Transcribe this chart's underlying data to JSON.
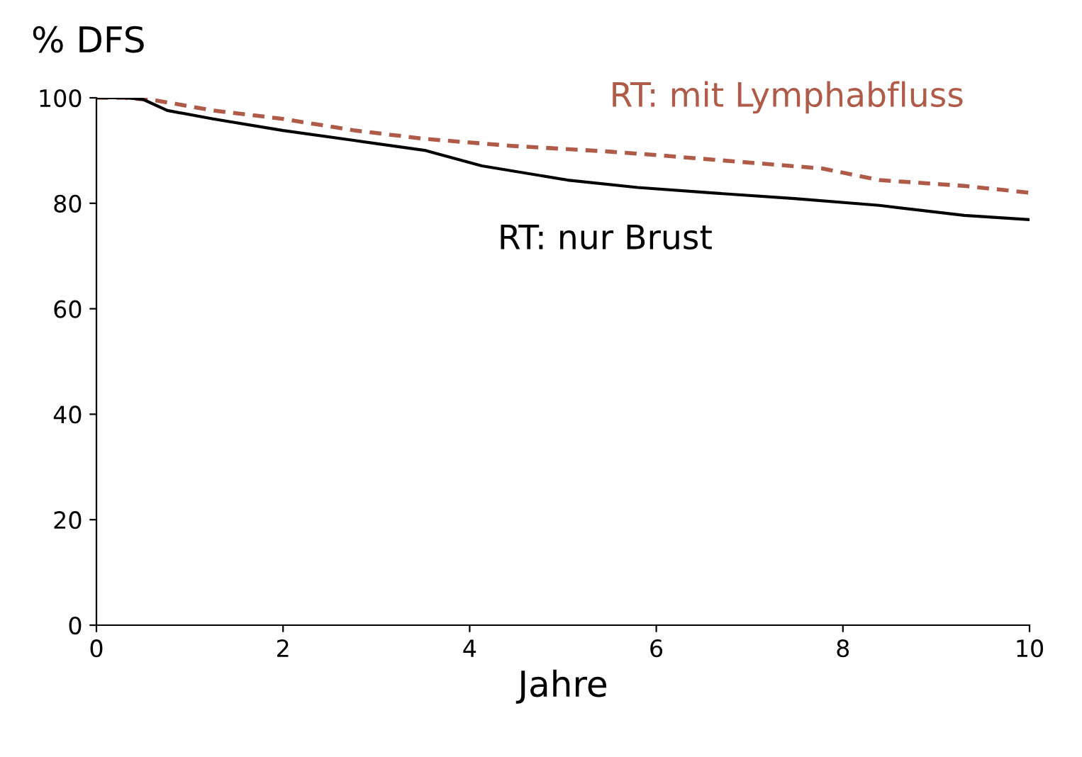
{
  "chart_data": {
    "type": "line",
    "xlabel": "Jahre",
    "ylabel": "% DFS",
    "xlim": [
      0,
      10
    ],
    "ylim": [
      0,
      100
    ],
    "xticks": [
      0,
      2,
      4,
      6,
      8,
      10
    ],
    "yticks": [
      0,
      20,
      40,
      60,
      80,
      100
    ],
    "grid": false,
    "legend": false,
    "marker": "none",
    "series": [
      {
        "name": "RT: mit Lymphabfluss",
        "color": "#b05a48",
        "line_style": "dashed",
        "x": [
          0,
          0.3,
          0.64,
          1.25,
          2,
          2.77,
          3.53,
          4.44,
          5.5,
          6.1,
          6.87,
          7.78,
          8.39,
          9.3,
          10
        ],
        "values": [
          100,
          100,
          99.5,
          97.6,
          96,
          93.8,
          92.2,
          90.9,
          89.8,
          89,
          87.9,
          86.6,
          84.4,
          83.3,
          82
        ]
      },
      {
        "name": "RT: nur Brust",
        "color": "#000000",
        "line_style": "solid",
        "x": [
          0,
          0.3,
          0.5,
          0.76,
          1.25,
          2,
          2.77,
          3.53,
          4.13,
          5.05,
          5.8,
          6.57,
          7.48,
          8.39,
          9.3,
          10
        ],
        "values": [
          100,
          100,
          99.7,
          97.6,
          96,
          93.8,
          91.9,
          90,
          87.1,
          84.4,
          83,
          82,
          80.9,
          79.6,
          77.7,
          76.9
        ]
      }
    ]
  }
}
